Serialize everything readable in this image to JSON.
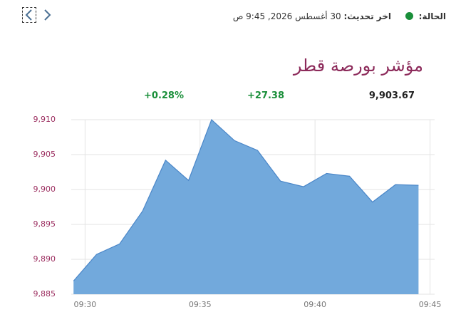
{
  "header": {
    "status_label": "الحالة:",
    "update_label": "اخر تحديث:",
    "update_value": "30 أغسطس 2026, 9:45 ص"
  },
  "title": "مؤشر بورصة قطر",
  "stats": {
    "last": "9,903.67",
    "change": "+27.38",
    "change_percent": "+0.28%"
  },
  "chart_data": {
    "type": "area",
    "color": "#72a9dc",
    "line_color": "#4a86c8",
    "grid": true,
    "x": [
      569.5,
      570.5,
      571.5,
      572.5,
      573.5,
      574.5,
      575.5,
      576.5,
      577.5,
      578.5,
      579.5,
      580.5,
      581.5,
      582.5,
      583.5,
      584.5
    ],
    "values": [
      9886.9,
      9890.7,
      9892.2,
      9896.9,
      9904.2,
      9901.3,
      9910.0,
      9907.0,
      9905.6,
      9901.2,
      9900.4,
      9902.3,
      9901.9,
      9898.2,
      9900.7,
      9900.6
    ],
    "xlim": [
      569.4,
      585.2
    ],
    "xticks": [
      {
        "value": 570,
        "label": "09:30"
      },
      {
        "value": 575,
        "label": "09:35"
      },
      {
        "value": 580,
        "label": "09:40"
      },
      {
        "value": 585,
        "label": "09:45"
      }
    ],
    "ylim": [
      9885,
      9910
    ],
    "yticks": [
      {
        "value": 9885,
        "label": "9,885"
      },
      {
        "value": 9890,
        "label": "9,890"
      },
      {
        "value": 9895,
        "label": "9,895"
      },
      {
        "value": 9900,
        "label": "9,900"
      },
      {
        "value": 9905,
        "label": "9,905"
      },
      {
        "value": 9910,
        "label": "9,910"
      }
    ]
  }
}
